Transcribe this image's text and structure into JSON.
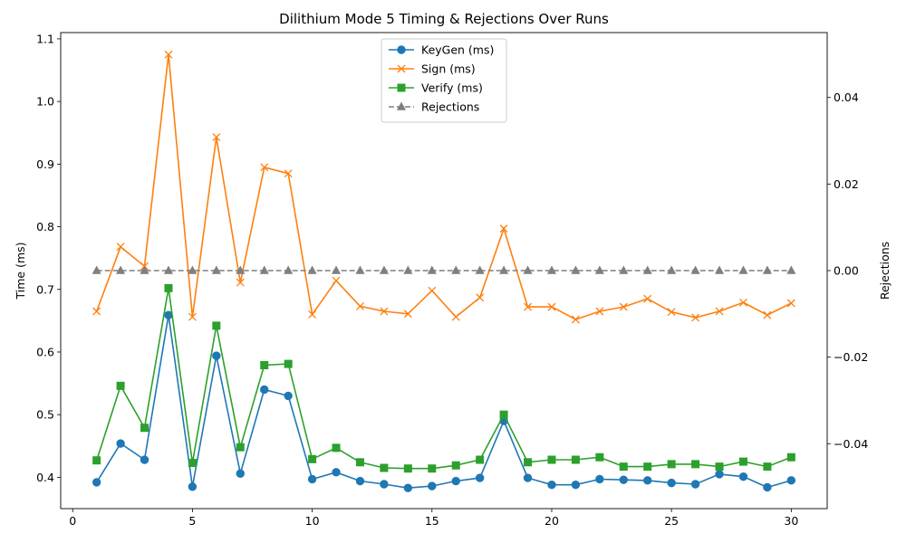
{
  "chart_data": {
    "type": "line",
    "title": "Dilithium Mode 5 Timing & Rejections Over Runs",
    "xlabel": "",
    "ylabel": "Time (ms)",
    "y2label": "Rejections",
    "xlim": [
      -0.5,
      31.5
    ],
    "ylim": [
      0.35,
      1.11
    ],
    "y2lim": [
      -0.055,
      0.055
    ],
    "xticks": [
      0,
      5,
      10,
      15,
      20,
      25,
      30
    ],
    "yticks": [
      0.4,
      0.5,
      0.6,
      0.7,
      0.8,
      0.9,
      1.0,
      1.1
    ],
    "y2ticks": [
      -0.04,
      -0.02,
      0.0,
      0.02,
      0.04
    ],
    "xtick_labels": [
      "0",
      "5",
      "10",
      "15",
      "20",
      "25",
      "30"
    ],
    "ytick_labels": [
      "0.4",
      "0.5",
      "0.6",
      "0.7",
      "0.8",
      "0.9",
      "1.0",
      "1.1"
    ],
    "y2tick_labels": [
      "−0.04",
      "−0.02",
      "0.00",
      "0.02",
      "0.04"
    ],
    "grid": false,
    "legend_position": "top-center",
    "x": [
      1,
      2,
      3,
      4,
      5,
      6,
      7,
      8,
      9,
      10,
      11,
      12,
      13,
      14,
      15,
      16,
      17,
      18,
      19,
      20,
      21,
      22,
      23,
      24,
      25,
      26,
      27,
      28,
      29,
      30
    ],
    "series": [
      {
        "name": "KeyGen (ms)",
        "axis": "left",
        "color": "#1f77b4",
        "marker": "circle",
        "dash": false,
        "values": [
          0.392,
          0.454,
          0.428,
          0.659,
          0.385,
          0.594,
          0.406,
          0.54,
          0.53,
          0.397,
          0.408,
          0.394,
          0.389,
          0.383,
          0.386,
          0.394,
          0.399,
          0.49,
          0.399,
          0.388,
          0.388,
          0.397,
          0.396,
          0.395,
          0.391,
          0.389,
          0.405,
          0.401,
          0.384,
          0.395
        ]
      },
      {
        "name": "Sign (ms)",
        "axis": "left",
        "color": "#ff7f0e",
        "marker": "x",
        "dash": false,
        "values": [
          0.665,
          0.768,
          0.737,
          1.075,
          0.656,
          0.943,
          0.711,
          0.895,
          0.885,
          0.66,
          0.714,
          0.673,
          0.665,
          0.661,
          0.698,
          0.656,
          0.687,
          0.797,
          0.672,
          0.672,
          0.652,
          0.665,
          0.672,
          0.685,
          0.664,
          0.655,
          0.665,
          0.679,
          0.659,
          0.678
        ]
      },
      {
        "name": "Verify (ms)",
        "axis": "left",
        "color": "#2ca02c",
        "marker": "square",
        "dash": false,
        "values": [
          0.427,
          0.546,
          0.479,
          0.702,
          0.423,
          0.642,
          0.448,
          0.579,
          0.581,
          0.429,
          0.447,
          0.424,
          0.415,
          0.414,
          0.414,
          0.419,
          0.428,
          0.5,
          0.424,
          0.428,
          0.428,
          0.432,
          0.417,
          0.417,
          0.421,
          0.421,
          0.417,
          0.425,
          0.417,
          0.432
        ]
      },
      {
        "name": "Rejections",
        "axis": "right",
        "color": "#7f7f7f",
        "marker": "triangle",
        "dash": true,
        "values": [
          0,
          0,
          0,
          0,
          0,
          0,
          0,
          0,
          0,
          0,
          0,
          0,
          0,
          0,
          0,
          0,
          0,
          0,
          0,
          0,
          0,
          0,
          0,
          0,
          0,
          0,
          0,
          0,
          0,
          0
        ]
      }
    ]
  }
}
